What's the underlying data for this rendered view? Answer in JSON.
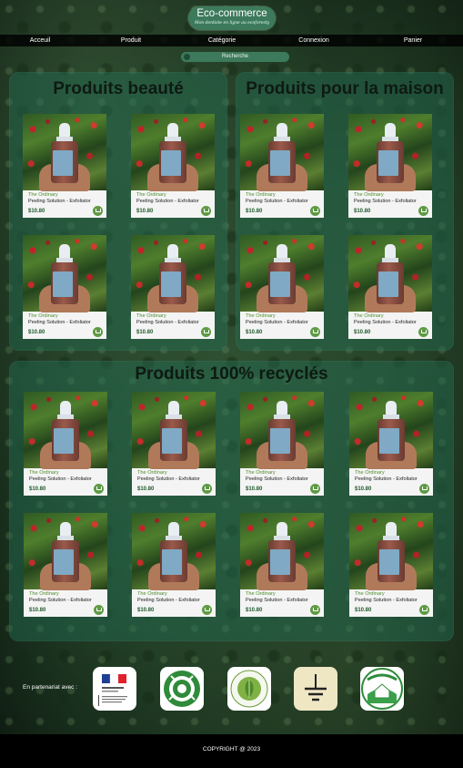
{
  "header": {
    "logo_title": "Eco-commerce",
    "logo_tagline": "Mon dentiste en ligne au ecoforesty",
    "nav": [
      "Acceuil",
      "Produit",
      "Catégorie",
      "Connexion",
      "Panier"
    ],
    "search_placeholder": "Recherche"
  },
  "sections": [
    {
      "title": "Produits beauté"
    },
    {
      "title": "Produits pour la maison"
    },
    {
      "title": "Produits 100% recyclés"
    }
  ],
  "product": {
    "brand": "The Ordinary",
    "name": "Peeling Solution - Exfoliator",
    "price": "$10.80"
  },
  "partners": {
    "label": "En partenariat avec :",
    "logos": [
      "republique-francaise-logo",
      "green-circle-logo",
      "ecolabel-logo",
      "earth-ground-logo",
      "accueil-paysan-logo"
    ]
  },
  "footer": {
    "copyright": "COPYRIGHT @ 2023"
  },
  "colors": {
    "accent": "#3d7a5c",
    "panel": "rgba(35,110,85,0.45)",
    "nav_bg": "#000000",
    "price_green": "#1e5a2a"
  }
}
